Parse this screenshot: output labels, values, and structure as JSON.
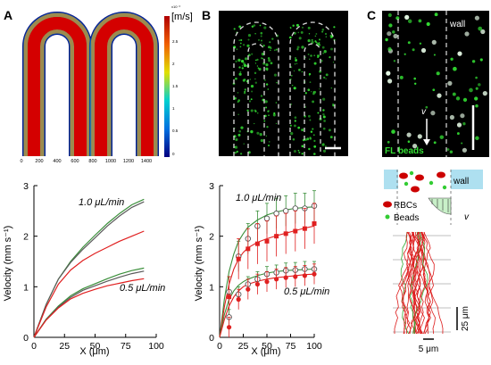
{
  "panels": {
    "A": {
      "letter": "A",
      "colorbar_unit": "[m/s]",
      "colorbar_exp": "x10⁻³",
      "colorbar_ticks": [
        "2.5",
        "2",
        "1.5",
        "1",
        "0.5",
        "0"
      ],
      "image_x_ticks": [
        "0",
        "200",
        "400",
        "600",
        "800",
        "1000",
        "1200",
        "1400"
      ],
      "colors": {
        "max": "#d40000",
        "mid": "#f0e000",
        "low": "#00a0e0",
        "min": "#000080"
      }
    },
    "B": {
      "letter": "B"
    },
    "C": {
      "letter": "C",
      "wall_label": "wall",
      "fl_beads_label": "FL beads",
      "v_label": "v",
      "schematic_wall_label": "wall",
      "legend_rbcs": "RBCs",
      "legend_beads": "Beads",
      "schematic_v_label": "v",
      "scale_25": "25 μm",
      "scale_5": "5 μm",
      "colors": {
        "rbc": "#cc0000",
        "bead": "#33cc33",
        "wall_fill": "#aee0f0"
      }
    }
  },
  "chart_data": [
    {
      "type": "line",
      "panel": "A",
      "xlabel": "X (μm)",
      "ylabel": "Velocity (mm s⁻¹)",
      "xlim": [
        0,
        100
      ],
      "ylim": [
        0,
        3
      ],
      "x_ticks": [
        0,
        25,
        50,
        75,
        100
      ],
      "y_ticks": [
        0,
        1,
        2,
        3
      ],
      "annotations": [
        "1.0 μL/min",
        "0.5 μL/min"
      ],
      "series": [
        {
          "color": "#3a8f3a",
          "x": [
            0,
            10,
            20,
            30,
            40,
            50,
            60,
            70,
            80,
            90
          ],
          "y": [
            0,
            0.65,
            1.15,
            1.5,
            1.78,
            2.02,
            2.25,
            2.45,
            2.62,
            2.73
          ]
        },
        {
          "color": "#5a5a5a",
          "x": [
            0,
            10,
            20,
            30,
            40,
            50,
            60,
            70,
            80,
            90
          ],
          "y": [
            0,
            0.65,
            1.15,
            1.48,
            1.74,
            1.97,
            2.2,
            2.4,
            2.57,
            2.68
          ]
        },
        {
          "color": "#e02020",
          "x": [
            0,
            10,
            20,
            30,
            40,
            50,
            60,
            70,
            80,
            90
          ],
          "y": [
            0,
            0.6,
            1.05,
            1.33,
            1.52,
            1.66,
            1.78,
            1.9,
            2.0,
            2.1
          ]
        },
        {
          "color": "#3a8f3a",
          "x": [
            0,
            10,
            20,
            30,
            40,
            50,
            60,
            70,
            80,
            90
          ],
          "y": [
            0,
            0.36,
            0.62,
            0.82,
            0.96,
            1.06,
            1.16,
            1.25,
            1.32,
            1.37
          ]
        },
        {
          "color": "#5a5a5a",
          "x": [
            0,
            10,
            20,
            30,
            40,
            50,
            60,
            70,
            80,
            90
          ],
          "y": [
            0,
            0.35,
            0.6,
            0.79,
            0.93,
            1.02,
            1.11,
            1.19,
            1.26,
            1.31
          ]
        },
        {
          "color": "#e02020",
          "x": [
            0,
            10,
            20,
            30,
            40,
            50,
            60,
            70,
            80,
            90
          ],
          "y": [
            0,
            0.34,
            0.58,
            0.76,
            0.87,
            0.95,
            1.02,
            1.07,
            1.12,
            1.16
          ]
        }
      ]
    },
    {
      "type": "scatter",
      "panel": "B",
      "xlabel": "X (μm)",
      "ylabel": "Velocity (mm s⁻¹)",
      "xlim": [
        0,
        100
      ],
      "ylim": [
        0,
        3
      ],
      "x_ticks": [
        0,
        25,
        50,
        75,
        100
      ],
      "y_ticks": [
        0,
        1,
        2,
        3
      ],
      "annotations": [
        "1.0 μL/min",
        "0.5 μL/min"
      ],
      "series": [
        {
          "marker": "open-circle",
          "color": "#555555",
          "x": [
            10,
            20,
            30,
            40,
            50,
            60,
            70,
            80,
            90,
            100
          ],
          "y": [
            0.9,
            1.6,
            1.95,
            2.2,
            2.35,
            2.45,
            2.5,
            2.55,
            2.55,
            2.6
          ],
          "err": [
            0.3,
            0.3,
            0.3,
            0.3,
            0.3,
            0.3,
            0.3,
            0.3,
            0.3,
            0.3
          ]
        },
        {
          "marker": "filled-square",
          "color": "#e02020",
          "x": [
            10,
            20,
            30,
            40,
            50,
            60,
            70,
            80,
            90,
            100
          ],
          "y": [
            0.8,
            1.55,
            1.75,
            1.85,
            1.9,
            2.0,
            2.05,
            2.1,
            2.15,
            2.25
          ],
          "err": [
            0.4,
            0.4,
            0.4,
            0.4,
            0.4,
            0.4,
            0.4,
            0.4,
            0.4,
            0.4
          ]
        },
        {
          "marker": "open-circle",
          "color": "#555555",
          "x": [
            10,
            20,
            30,
            40,
            50,
            60,
            70,
            80,
            90,
            100
          ],
          "y": [
            0.4,
            0.85,
            1.05,
            1.15,
            1.25,
            1.28,
            1.32,
            1.33,
            1.35,
            1.35
          ],
          "err": [
            0.15,
            0.15,
            0.15,
            0.15,
            0.15,
            0.15,
            0.15,
            0.15,
            0.15,
            0.15
          ]
        },
        {
          "marker": "filled-circle",
          "color": "#e02020",
          "x": [
            10,
            20,
            30,
            40,
            50,
            60,
            70,
            80,
            90,
            100
          ],
          "y": [
            0.2,
            0.75,
            0.95,
            1.05,
            1.1,
            1.15,
            1.18,
            1.2,
            1.22,
            1.25
          ],
          "err": [
            0.2,
            0.2,
            0.2,
            0.2,
            0.2,
            0.2,
            0.2,
            0.2,
            0.2,
            0.2
          ]
        }
      ],
      "fits": [
        {
          "color": "#3a8f3a",
          "x": [
            0,
            5,
            10,
            15,
            20,
            25,
            30,
            40,
            50,
            60,
            70,
            80,
            90,
            100
          ],
          "y": [
            0,
            0.75,
            1.3,
            1.65,
            1.9,
            2.05,
            2.18,
            2.32,
            2.42,
            2.48,
            2.52,
            2.55,
            2.57,
            2.58
          ]
        },
        {
          "color": "#e02020",
          "x": [
            0,
            5,
            10,
            15,
            20,
            25,
            30,
            40,
            50,
            60,
            70,
            80,
            90,
            100
          ],
          "y": [
            0,
            0.6,
            1.05,
            1.35,
            1.55,
            1.68,
            1.77,
            1.88,
            1.95,
            2.01,
            2.06,
            2.11,
            2.16,
            2.2
          ]
        },
        {
          "color": "#3a8f3a",
          "x": [
            0,
            5,
            10,
            15,
            20,
            25,
            30,
            40,
            50,
            60,
            70,
            80,
            90,
            100
          ],
          "y": [
            0,
            0.45,
            0.75,
            0.92,
            1.03,
            1.1,
            1.15,
            1.22,
            1.27,
            1.3,
            1.32,
            1.33,
            1.34,
            1.35
          ]
        },
        {
          "color": "#e02020",
          "x": [
            0,
            5,
            10,
            15,
            20,
            25,
            30,
            40,
            50,
            60,
            70,
            80,
            90,
            100
          ],
          "y": [
            0,
            0.35,
            0.62,
            0.8,
            0.92,
            1.0,
            1.05,
            1.11,
            1.15,
            1.18,
            1.2,
            1.22,
            1.24,
            1.25
          ]
        }
      ]
    }
  ]
}
